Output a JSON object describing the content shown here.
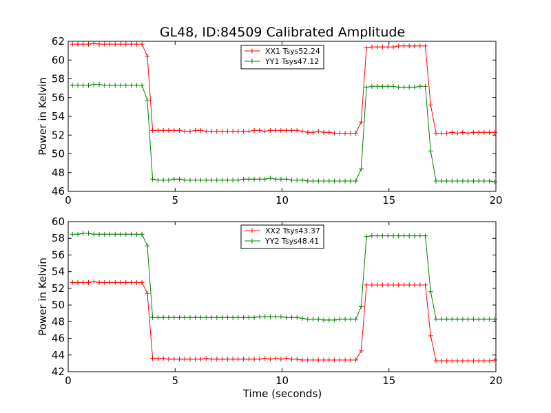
{
  "chart_data": [
    {
      "type": "line",
      "title": "GL48, ID:84509 Calibrated Amplitude",
      "xlabel": "",
      "ylabel": "Power in Kelvin",
      "xlim": [
        0,
        20
      ],
      "ylim": [
        46,
        62
      ],
      "xticks": [
        "0",
        "5",
        "10",
        "15",
        "20"
      ],
      "yticks": [
        "46",
        "48",
        "50",
        "52",
        "54",
        "56",
        "58",
        "60",
        "62"
      ],
      "legend_position": "upper-center",
      "x": [
        0.2,
        0.45,
        0.7,
        0.95,
        1.2,
        1.45,
        1.7,
        1.95,
        2.2,
        2.45,
        2.7,
        2.95,
        3.2,
        3.45,
        3.7,
        3.95,
        4.2,
        4.45,
        4.7,
        4.95,
        5.2,
        5.45,
        5.7,
        5.95,
        6.2,
        6.45,
        6.7,
        6.95,
        7.2,
        7.45,
        7.7,
        7.95,
        8.2,
        8.45,
        8.7,
        8.95,
        9.2,
        9.45,
        9.7,
        9.95,
        10.2,
        10.45,
        10.7,
        10.95,
        11.2,
        11.45,
        11.7,
        11.95,
        12.2,
        12.45,
        12.7,
        12.95,
        13.2,
        13.45,
        13.7,
        13.95,
        14.2,
        14.45,
        14.7,
        14.95,
        15.2,
        15.45,
        15.7,
        15.95,
        16.2,
        16.45,
        16.7,
        16.95,
        17.2,
        17.45,
        17.7,
        17.95,
        18.2,
        18.45,
        18.7,
        18.95,
        19.2,
        19.45,
        19.7,
        19.95
      ],
      "series": [
        {
          "name": "XX1 Tsys52.24",
          "color": "#ff0000",
          "values": [
            61.7,
            61.7,
            61.7,
            61.7,
            61.8,
            61.7,
            61.7,
            61.7,
            61.7,
            61.7,
            61.7,
            61.7,
            61.7,
            61.7,
            60.4,
            52.5,
            52.5,
            52.5,
            52.5,
            52.5,
            52.5,
            52.4,
            52.4,
            52.5,
            52.5,
            52.4,
            52.4,
            52.4,
            52.4,
            52.4,
            52.4,
            52.4,
            52.4,
            52.4,
            52.5,
            52.5,
            52.4,
            52.5,
            52.5,
            52.5,
            52.5,
            52.5,
            52.5,
            52.4,
            52.3,
            52.3,
            52.4,
            52.3,
            52.3,
            52.2,
            52.2,
            52.2,
            52.2,
            52.2,
            53.4,
            61.3,
            61.4,
            61.4,
            61.4,
            61.4,
            61.4,
            61.5,
            61.5,
            61.5,
            61.5,
            61.5,
            61.5,
            55.2,
            52.2,
            52.2,
            52.2,
            52.3,
            52.2,
            52.3,
            52.2,
            52.3,
            52.3,
            52.3,
            52.3,
            52.3
          ]
        },
        {
          "name": "YY1 Tsys47.12",
          "color": "#008000",
          "values": [
            57.3,
            57.3,
            57.3,
            57.3,
            57.4,
            57.4,
            57.3,
            57.3,
            57.3,
            57.3,
            57.3,
            57.3,
            57.3,
            57.3,
            55.7,
            47.3,
            47.2,
            47.2,
            47.2,
            47.3,
            47.3,
            47.2,
            47.2,
            47.2,
            47.2,
            47.2,
            47.2,
            47.2,
            47.2,
            47.2,
            47.2,
            47.2,
            47.3,
            47.3,
            47.3,
            47.3,
            47.3,
            47.4,
            47.3,
            47.3,
            47.3,
            47.2,
            47.2,
            47.2,
            47.1,
            47.1,
            47.1,
            47.1,
            47.1,
            47.1,
            47.1,
            47.1,
            47.1,
            47.1,
            48.4,
            57.1,
            57.2,
            57.2,
            57.2,
            57.2,
            57.2,
            57.1,
            57.1,
            57.1,
            57.1,
            57.2,
            57.2,
            50.3,
            47.1,
            47.1,
            47.1,
            47.1,
            47.1,
            47.1,
            47.1,
            47.1,
            47.1,
            47.1,
            47.1,
            47.0
          ]
        }
      ]
    },
    {
      "type": "line",
      "title": "",
      "xlabel": "Time (seconds)",
      "ylabel": "Power in Kelvin",
      "xlim": [
        0,
        20
      ],
      "ylim": [
        42,
        60
      ],
      "xticks": [
        "0",
        "5",
        "10",
        "15",
        "20"
      ],
      "yticks": [
        "42",
        "44",
        "46",
        "48",
        "50",
        "52",
        "54",
        "56",
        "58",
        "60"
      ],
      "legend_position": "upper-center",
      "x": [
        0.2,
        0.45,
        0.7,
        0.95,
        1.2,
        1.45,
        1.7,
        1.95,
        2.2,
        2.45,
        2.7,
        2.95,
        3.2,
        3.45,
        3.7,
        3.95,
        4.2,
        4.45,
        4.7,
        4.95,
        5.2,
        5.45,
        5.7,
        5.95,
        6.2,
        6.45,
        6.7,
        6.95,
        7.2,
        7.45,
        7.7,
        7.95,
        8.2,
        8.45,
        8.7,
        8.95,
        9.2,
        9.45,
        9.7,
        9.95,
        10.2,
        10.45,
        10.7,
        10.95,
        11.2,
        11.45,
        11.7,
        11.95,
        12.2,
        12.45,
        12.7,
        12.95,
        13.2,
        13.45,
        13.7,
        13.95,
        14.2,
        14.45,
        14.7,
        14.95,
        15.2,
        15.45,
        15.7,
        15.95,
        16.2,
        16.45,
        16.7,
        16.95,
        17.2,
        17.45,
        17.7,
        17.95,
        18.2,
        18.45,
        18.7,
        18.95,
        19.2,
        19.45,
        19.7,
        19.95
      ],
      "series": [
        {
          "name": "XX2 Tsys43.37",
          "color": "#ff0000",
          "values": [
            52.7,
            52.7,
            52.7,
            52.7,
            52.8,
            52.7,
            52.7,
            52.7,
            52.7,
            52.7,
            52.7,
            52.7,
            52.7,
            52.7,
            51.4,
            43.6,
            43.6,
            43.6,
            43.5,
            43.5,
            43.5,
            43.5,
            43.5,
            43.5,
            43.5,
            43.6,
            43.5,
            43.5,
            43.5,
            43.5,
            43.5,
            43.5,
            43.5,
            43.5,
            43.5,
            43.5,
            43.6,
            43.5,
            43.6,
            43.5,
            43.6,
            43.5,
            43.5,
            43.4,
            43.4,
            43.4,
            43.4,
            43.4,
            43.4,
            43.4,
            43.4,
            43.4,
            43.4,
            43.4,
            44.5,
            52.4,
            52.4,
            52.4,
            52.4,
            52.4,
            52.4,
            52.4,
            52.4,
            52.4,
            52.4,
            52.4,
            52.4,
            46.3,
            43.3,
            43.3,
            43.3,
            43.3,
            43.3,
            43.3,
            43.3,
            43.3,
            43.3,
            43.3,
            43.3,
            43.4
          ]
        },
        {
          "name": "YY2 Tsys48.41",
          "color": "#008000",
          "values": [
            58.5,
            58.5,
            58.6,
            58.6,
            58.5,
            58.5,
            58.5,
            58.5,
            58.5,
            58.5,
            58.5,
            58.5,
            58.5,
            58.5,
            57.1,
            48.5,
            48.5,
            48.5,
            48.5,
            48.5,
            48.5,
            48.5,
            48.5,
            48.5,
            48.5,
            48.5,
            48.5,
            48.5,
            48.5,
            48.5,
            48.5,
            48.5,
            48.5,
            48.5,
            48.5,
            48.6,
            48.6,
            48.6,
            48.6,
            48.6,
            48.5,
            48.5,
            48.5,
            48.4,
            48.3,
            48.3,
            48.3,
            48.2,
            48.2,
            48.2,
            48.3,
            48.3,
            48.3,
            48.3,
            49.8,
            58.2,
            58.3,
            58.3,
            58.3,
            58.3,
            58.3,
            58.3,
            58.3,
            58.3,
            58.3,
            58.3,
            58.3,
            51.6,
            48.3,
            48.3,
            48.3,
            48.3,
            48.3,
            48.3,
            48.3,
            48.3,
            48.3,
            48.3,
            48.3,
            48.3
          ]
        }
      ]
    }
  ]
}
